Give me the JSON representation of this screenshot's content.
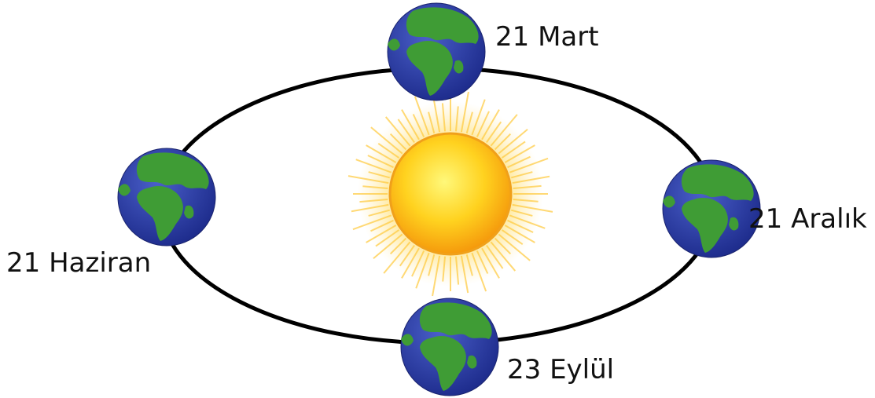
{
  "nodes": [
    {
      "label": "21 Mart"
    },
    {
      "label": "21 Haziran"
    },
    {
      "label": "21 Aralık"
    },
    {
      "label": "23 Eylül"
    }
  ]
}
